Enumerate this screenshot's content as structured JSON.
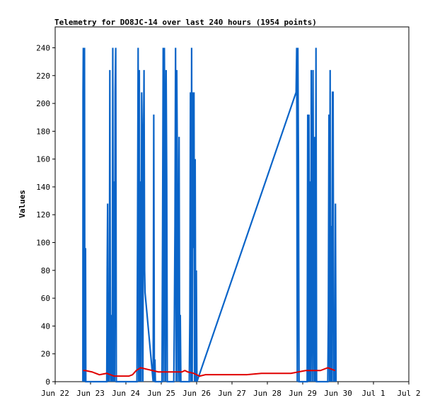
{
  "chart_data": {
    "type": "line",
    "title": "Telemetry for DO8JC-14 over last 240 hours (1954 points)",
    "xlabel": "",
    "ylabel": "Values",
    "x_range": [
      0,
      240
    ],
    "ylim": [
      0,
      255
    ],
    "y_ticks": [
      0,
      20,
      40,
      60,
      80,
      100,
      120,
      140,
      160,
      180,
      200,
      220,
      240
    ],
    "x_ticks": [
      {
        "label": "Jun 22",
        "hour": 0
      },
      {
        "label": "Jun 23",
        "hour": 24
      },
      {
        "label": "Jun 24",
        "hour": 48
      },
      {
        "label": "Jun 25",
        "hour": 72
      },
      {
        "label": "Jun 26",
        "hour": 96
      },
      {
        "label": "Jun 27",
        "hour": 120
      },
      {
        "label": "Jun 28",
        "hour": 144
      },
      {
        "label": "Jun 29",
        "hour": 168
      },
      {
        "label": "Jun 30",
        "hour": 192
      },
      {
        "label": "Jul 1",
        "hour": 216
      },
      {
        "label": "Jul 2",
        "hour": 240
      }
    ],
    "grid": false,
    "series": [
      {
        "color": "#0a64c8",
        "points": [
          [
            18.8,
            0
          ],
          [
            18.9,
            208
          ],
          [
            19.1,
            240
          ],
          [
            19.3,
            128
          ],
          [
            19.5,
            176
          ],
          [
            19.7,
            0
          ],
          [
            19.9,
            240
          ],
          [
            20.1,
            48
          ],
          [
            20.3,
            0
          ],
          [
            20.6,
            96
          ],
          [
            20.8,
            0
          ],
          [
            35.0,
            0
          ],
          [
            35.3,
            80
          ],
          [
            35.6,
            128
          ],
          [
            35.9,
            0
          ],
          [
            36.3,
            64
          ],
          [
            36.7,
            0
          ],
          [
            37.1,
            224
          ],
          [
            37.5,
            16
          ],
          [
            37.9,
            0
          ],
          [
            38.3,
            48
          ],
          [
            38.7,
            0
          ],
          [
            39.1,
            240
          ],
          [
            39.5,
            0
          ],
          [
            39.9,
            144
          ],
          [
            40.3,
            0
          ],
          [
            40.7,
            208
          ],
          [
            41.1,
            240
          ],
          [
            41.5,
            0
          ],
          [
            55.5,
            0
          ],
          [
            55.9,
            104
          ],
          [
            56.3,
            240
          ],
          [
            56.7,
            0
          ],
          [
            57.1,
            224
          ],
          [
            57.5,
            0
          ],
          [
            57.9,
            144
          ],
          [
            58.3,
            0
          ],
          [
            58.7,
            208
          ],
          [
            59.1,
            176
          ],
          [
            59.5,
            0
          ],
          [
            59.9,
            160
          ],
          [
            60.3,
            224
          ],
          [
            60.7,
            80
          ],
          [
            61.0,
            64
          ],
          [
            66.5,
            0
          ],
          [
            66.9,
            192
          ],
          [
            67.3,
            0
          ],
          [
            67.7,
            16
          ],
          [
            68.0,
            0
          ],
          [
            72.5,
            0
          ],
          [
            72.9,
            112
          ],
          [
            73.3,
            240
          ],
          [
            73.7,
            0
          ],
          [
            74.1,
            240
          ],
          [
            74.5,
            160
          ],
          [
            74.9,
            0
          ],
          [
            75.3,
            224
          ],
          [
            75.7,
            144
          ],
          [
            76.1,
            0
          ],
          [
            80.5,
            0
          ],
          [
            80.9,
            48
          ],
          [
            81.3,
            112
          ],
          [
            81.7,
            240
          ],
          [
            82.1,
            0
          ],
          [
            82.5,
            224
          ],
          [
            82.9,
            160
          ],
          [
            83.3,
            0
          ],
          [
            83.7,
            32
          ],
          [
            84.1,
            176
          ],
          [
            84.5,
            0
          ],
          [
            84.9,
            48
          ],
          [
            85.3,
            0
          ],
          [
            91.0,
            0
          ],
          [
            91.4,
            48
          ],
          [
            91.8,
            208
          ],
          [
            92.2,
            0
          ],
          [
            92.6,
            240
          ],
          [
            93.0,
            0
          ],
          [
            93.4,
            208
          ],
          [
            93.8,
            96
          ],
          [
            94.2,
            208
          ],
          [
            94.6,
            0
          ],
          [
            95.0,
            160
          ],
          [
            95.4,
            0
          ],
          [
            95.8,
            80
          ],
          [
            96.2,
            0
          ],
          [
            163.5,
            208
          ],
          [
            163.9,
            240
          ],
          [
            164.3,
            0
          ],
          [
            164.7,
            240
          ],
          [
            165.1,
            160
          ],
          [
            165.5,
            0
          ],
          [
            171.0,
            0
          ],
          [
            171.4,
            192
          ],
          [
            171.8,
            0
          ],
          [
            172.2,
            192
          ],
          [
            172.6,
            0
          ],
          [
            173.0,
            144
          ],
          [
            173.4,
            0
          ],
          [
            173.8,
            224
          ],
          [
            174.2,
            72
          ],
          [
            174.6,
            0
          ],
          [
            175.0,
            224
          ],
          [
            175.4,
            80
          ],
          [
            175.8,
            0
          ],
          [
            176.2,
            176
          ],
          [
            176.6,
            0
          ],
          [
            177.0,
            240
          ],
          [
            177.4,
            0
          ],
          [
            185.0,
            0
          ],
          [
            185.4,
            48
          ],
          [
            185.8,
            192
          ],
          [
            186.2,
            0
          ],
          [
            186.6,
            224
          ],
          [
            187.0,
            0
          ],
          [
            187.4,
            112
          ],
          [
            187.8,
            0
          ],
          [
            188.2,
            208
          ],
          [
            188.6,
            208
          ],
          [
            189.0,
            0
          ],
          [
            189.4,
            32
          ],
          [
            189.8,
            0
          ],
          [
            190.2,
            128
          ],
          [
            190.6,
            0
          ]
        ]
      },
      {
        "color": "#e00000",
        "points": [
          [
            19.0,
            8
          ],
          [
            20.5,
            8
          ],
          [
            25.0,
            7
          ],
          [
            30.0,
            5
          ],
          [
            35.0,
            6
          ],
          [
            40.0,
            4
          ],
          [
            45.0,
            4
          ],
          [
            50.0,
            4
          ],
          [
            52.5,
            5
          ],
          [
            55.0,
            8
          ],
          [
            58.0,
            10
          ],
          [
            62.0,
            9
          ],
          [
            66.0,
            8
          ],
          [
            70.0,
            7
          ],
          [
            74.0,
            7
          ],
          [
            78.0,
            7
          ],
          [
            82.0,
            7
          ],
          [
            86.0,
            7
          ],
          [
            88.0,
            8
          ],
          [
            90.0,
            7
          ],
          [
            94.0,
            6
          ],
          [
            98.0,
            4
          ],
          [
            102.0,
            5
          ],
          [
            110.0,
            5
          ],
          [
            120.0,
            5
          ],
          [
            130.0,
            5
          ],
          [
            140.0,
            6
          ],
          [
            150.0,
            6
          ],
          [
            160.0,
            6
          ],
          [
            170.0,
            8
          ],
          [
            180.0,
            8
          ],
          [
            185.0,
            10
          ],
          [
            190.0,
            8
          ]
        ]
      }
    ]
  }
}
